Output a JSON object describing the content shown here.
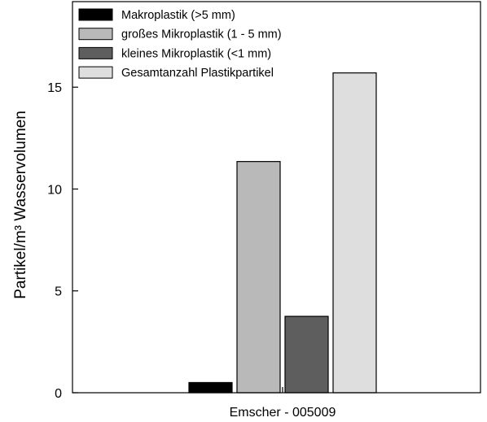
{
  "chart_data": {
    "type": "bar",
    "categories": [
      "Emscher - 005009"
    ],
    "series": [
      {
        "name": "Makroplastik (>5 mm)",
        "values": [
          0.5
        ],
        "color": "#000000"
      },
      {
        "name": "großes Mikroplastik (1 - 5 mm)",
        "values": [
          11.35
        ],
        "color": "#b9b9b9"
      },
      {
        "name": "kleines Mikroplastik (<1 mm)",
        "values": [
          3.75
        ],
        "color": "#5e5e5e"
      },
      {
        "name": "Gesamtanzahl Plastikpartikel",
        "values": [
          15.7
        ],
        "color": "#dedede"
      }
    ],
    "xlabel": "",
    "ylabel": "Partikel/m³ Wasservolumen",
    "ylim": [
      0,
      19.2
    ],
    "yticks": [
      0,
      5,
      10,
      15
    ],
    "grid": false,
    "legend": "top-left"
  }
}
